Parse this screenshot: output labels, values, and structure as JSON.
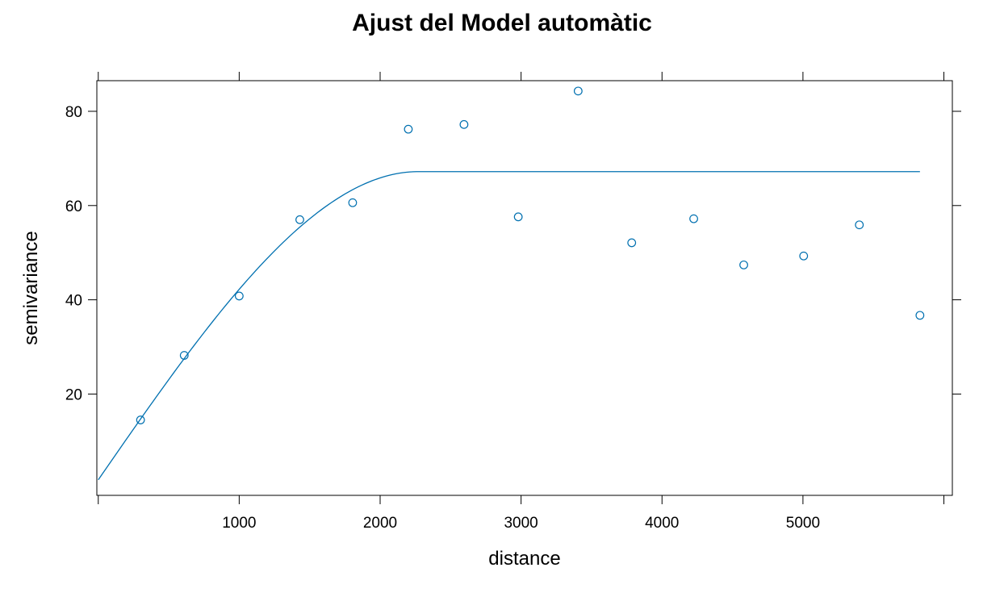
{
  "chart_data": {
    "type": "scatter",
    "title": "Ajust del Model automàtic",
    "xlabel": "distance",
    "ylabel": "semivariance",
    "xlim": [
      -10,
      6060
    ],
    "ylim": [
      -1.5,
      86.5
    ],
    "xticks": [
      1000,
      2000,
      3000,
      4000,
      5000
    ],
    "xtick_marks": [
      0,
      1000,
      2000,
      3000,
      4000,
      5000,
      6000
    ],
    "yticks": [
      20,
      40,
      60,
      80
    ],
    "grid": false,
    "legend": "none",
    "point_color": "#0070b0",
    "line_color": "#0070b0",
    "points": [
      {
        "x": 300,
        "y": 14.5
      },
      {
        "x": 610,
        "y": 28.2
      },
      {
        "x": 1000,
        "y": 40.8
      },
      {
        "x": 1430,
        "y": 57.0
      },
      {
        "x": 1805,
        "y": 60.6
      },
      {
        "x": 2200,
        "y": 76.2
      },
      {
        "x": 2595,
        "y": 77.2
      },
      {
        "x": 2980,
        "y": 57.6
      },
      {
        "x": 3405,
        "y": 84.3
      },
      {
        "x": 3785,
        "y": 52.1
      },
      {
        "x": 4225,
        "y": 57.2
      },
      {
        "x": 4580,
        "y": 47.4
      },
      {
        "x": 5005,
        "y": 49.3
      },
      {
        "x": 5400,
        "y": 55.9
      },
      {
        "x": 5830,
        "y": 36.7
      }
    ],
    "model": {
      "kind": "spherical",
      "nugget": 1.8,
      "partial_sill": 65.4,
      "range": 2270,
      "x_from": 0,
      "x_to": 5830
    }
  }
}
